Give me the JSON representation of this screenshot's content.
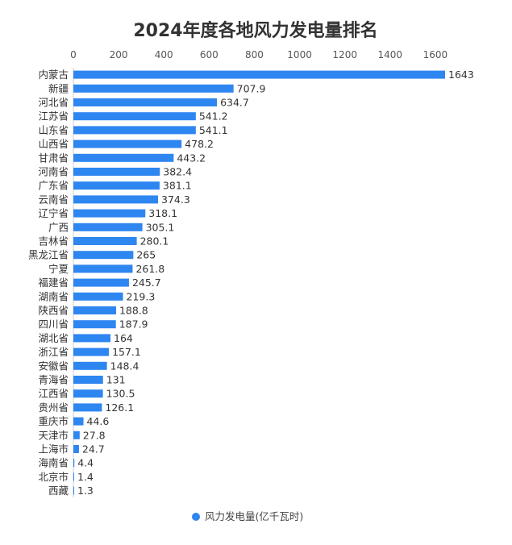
{
  "chart_data": {
    "type": "bar",
    "orientation": "horizontal",
    "title": "2024年度各地风力发电量排名",
    "categories": [
      "内蒙古",
      "新疆",
      "河北省",
      "江苏省",
      "山东省",
      "山西省",
      "甘肃省",
      "河南省",
      "广东省",
      "云南省",
      "辽宁省",
      "广西",
      "吉林省",
      "黑龙江省",
      "宁夏",
      "福建省",
      "湖南省",
      "陕西省",
      "四川省",
      "湖北省",
      "浙江省",
      "安徽省",
      "青海省",
      "江西省",
      "贵州省",
      "重庆市",
      "天津市",
      "上海市",
      "海南省",
      "北京市",
      "西藏"
    ],
    "value_labels": [
      "1643",
      "707.9",
      "634.7",
      "541.2",
      "541.1",
      "478.2",
      "443.2",
      "382.4",
      "381.1",
      "374.3",
      "318.1",
      "305.1",
      "280.1",
      "265",
      "261.8",
      "245.7",
      "219.3",
      "188.8",
      "187.9",
      "164",
      "157.1",
      "148.4",
      "131",
      "130.5",
      "126.1",
      "44.6",
      "27.8",
      "24.7",
      "4.4",
      "1.4",
      "1.3"
    ],
    "series": [
      {
        "name": "风力发电量(亿千瓦时)",
        "color": "#2e86f0",
        "values": [
          1643,
          707.9,
          634.7,
          541.2,
          541.1,
          478.2,
          443.2,
          382.4,
          381.1,
          374.3,
          318.1,
          305.1,
          280.1,
          265,
          261.8,
          245.7,
          219.3,
          188.8,
          187.9,
          164,
          157.1,
          148.4,
          131,
          130.5,
          126.1,
          44.6,
          27.8,
          24.7,
          4.4,
          1.4,
          1.3
        ]
      }
    ],
    "xaxis": {
      "position": "top",
      "range": [
        0,
        1643
      ],
      "ticks": [
        0,
        200,
        400,
        600,
        800,
        1000,
        1200,
        1400,
        1600
      ],
      "tick_labels": [
        "0",
        "200",
        "400",
        "600",
        "800",
        "1000",
        "1200",
        "1400",
        "1600"
      ]
    },
    "grid": false,
    "legend": {
      "placement": "bottom-center"
    }
  }
}
